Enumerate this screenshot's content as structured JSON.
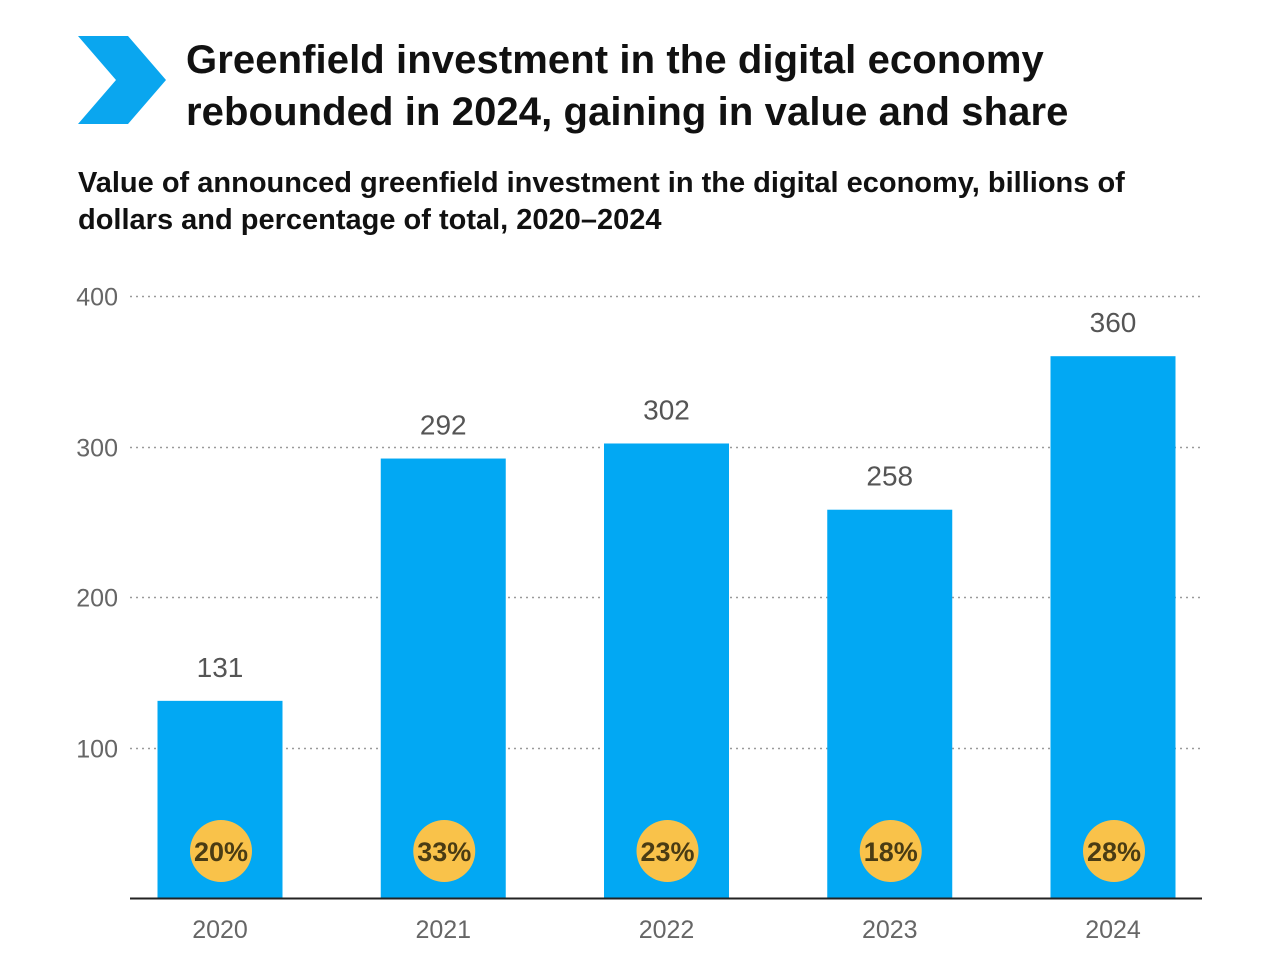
{
  "header": {
    "title_line1": "Greenfield investment in the digital economy",
    "title_line2": "rebounded in 2024, gaining in value and share",
    "subtitle_line1": "Value of announced greenfield investment in the digital economy, billions of",
    "subtitle_line2": "dollars and percentage of total, 2020–2024",
    "icon": "chevron-right-icon"
  },
  "colors": {
    "bar": "#02a8f3",
    "icon": "#0aa6ef",
    "share_bubble": "#f9c24a",
    "grid": "#9a9a9a",
    "axis": "#222222"
  },
  "chart_data": {
    "type": "bar",
    "title": "Value of announced greenfield investment in the digital economy, billions of dollars and percentage of total, 2020–2024",
    "xlabel": "",
    "ylabel": "",
    "categories": [
      "2020",
      "2021",
      "2022",
      "2023",
      "2024"
    ],
    "values": [
      131,
      292,
      302,
      258,
      360
    ],
    "value_labels": [
      "131",
      "292",
      "302",
      "258",
      "360"
    ],
    "share_of_total": [
      "20%",
      "33%",
      "23%",
      "18%",
      "28%"
    ],
    "ylim": [
      0,
      400
    ],
    "yticks": [
      100,
      200,
      300,
      400
    ],
    "ytick_labels": [
      "100",
      "200",
      "300",
      "400"
    ],
    "grid": true,
    "legend": "none"
  }
}
